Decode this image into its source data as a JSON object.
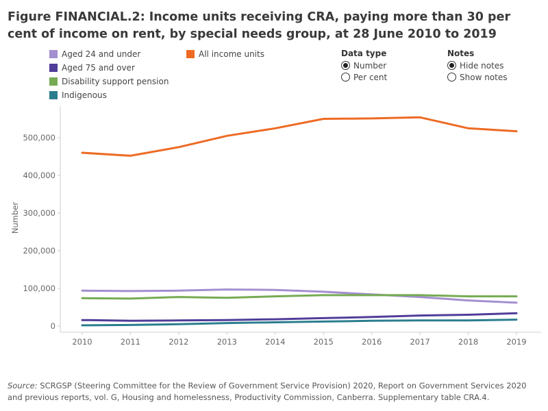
{
  "figure": {
    "title": "Figure FINANCIAL.2: Income units receiving CRA, paying more than 30 per cent of income on rent, by special needs group, at 28 June 2010 to 2019"
  },
  "legend": [
    {
      "label": "Aged 24 and under",
      "color": "#a48fd0"
    },
    {
      "label": "Aged 75 and over",
      "color": "#503d99"
    },
    {
      "label": "Disability support pension",
      "color": "#76ab53"
    },
    {
      "label": "Indigenous",
      "color": "#2a7d8e"
    },
    {
      "label": "All income units",
      "color": "#ee6a23"
    }
  ],
  "controls": {
    "data_type": {
      "title": "Data type",
      "options": [
        "Number",
        "Per cent"
      ],
      "selected": "Number"
    },
    "notes": {
      "title": "Notes",
      "options": [
        "Hide notes",
        "Show notes"
      ],
      "selected": "Hide notes"
    }
  },
  "source": {
    "label": "Source:",
    "text": " SCRGSP (Steering Committee for the Review of Government Service Provision) 2020, Report on Government Services 2020 and previous reports, vol. G, Housing and homelessness, Productivity Commission, Canberra. Supplementary table CRA.4."
  },
  "chart_data": {
    "type": "line",
    "ylabel": "Number",
    "xlabel": "",
    "x": [
      "2010",
      "2011",
      "2012",
      "2013",
      "2014",
      "2015",
      "2016",
      "2017",
      "2018",
      "2019"
    ],
    "ylim": [
      0,
      580000
    ],
    "yticks": [
      0,
      100000,
      200000,
      300000,
      400000,
      500000
    ],
    "ytick_labels": [
      "0",
      "100,000",
      "200,000",
      "300,000",
      "400,000",
      "500,000"
    ],
    "grid": false,
    "series": [
      {
        "name": "All income units",
        "color": "#ee6a23",
        "values": [
          460000,
          452000,
          475000,
          505000,
          525000,
          550000,
          551000,
          554000,
          525000,
          517000
        ]
      },
      {
        "name": "Aged 24 and under",
        "color": "#a48fd0",
        "values": [
          94000,
          93000,
          94000,
          97000,
          96000,
          91000,
          84000,
          77000,
          68000,
          62000
        ]
      },
      {
        "name": "Disability support pension",
        "color": "#76ab53",
        "values": [
          74000,
          73000,
          77000,
          75000,
          79000,
          82000,
          82000,
          82000,
          79000,
          79000
        ]
      },
      {
        "name": "Aged 75 and over",
        "color": "#503d99",
        "values": [
          16000,
          14000,
          15000,
          16000,
          18000,
          21000,
          24000,
          28000,
          30000,
          34000
        ]
      },
      {
        "name": "Indigenous",
        "color": "#2a7d8e",
        "values": [
          2000,
          3000,
          5000,
          8000,
          10000,
          12000,
          14000,
          15000,
          15000,
          17000
        ]
      }
    ]
  }
}
